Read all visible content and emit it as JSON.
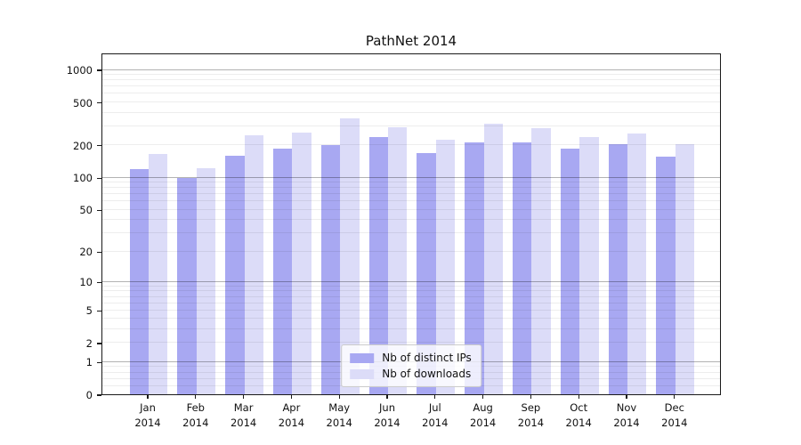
{
  "chart_data": {
    "type": "bar",
    "title": "PathNet 2014",
    "categories": [
      "Jan",
      "Feb",
      "Mar",
      "Apr",
      "May",
      "Jun",
      "Jul",
      "Aug",
      "Sep",
      "Oct",
      "Nov",
      "Dec"
    ],
    "category_year": "2014",
    "series": [
      {
        "name": "Nb of distinct IPs",
        "color": "#a8a8f2",
        "values": [
          120,
          98,
          158,
          184,
          198,
          237,
          169,
          212,
          210,
          184,
          202,
          155
        ]
      },
      {
        "name": "Nb of downloads",
        "color": "#dcdcf8",
        "values": [
          165,
          121,
          246,
          260,
          355,
          292,
          223,
          314,
          285,
          236,
          255,
          203
        ]
      }
    ],
    "xlabel": "",
    "ylabel": "",
    "y_scale": "log10(value+1)",
    "y_ticks": [
      1000,
      500,
      200,
      100,
      50,
      20,
      10,
      5,
      2,
      1,
      0
    ],
    "ylim": [
      0,
      1400
    ],
    "grid": "horizontal, minor + major (majors at powers of 10), drawn over bars",
    "legend_position": "lower center inside plot"
  }
}
